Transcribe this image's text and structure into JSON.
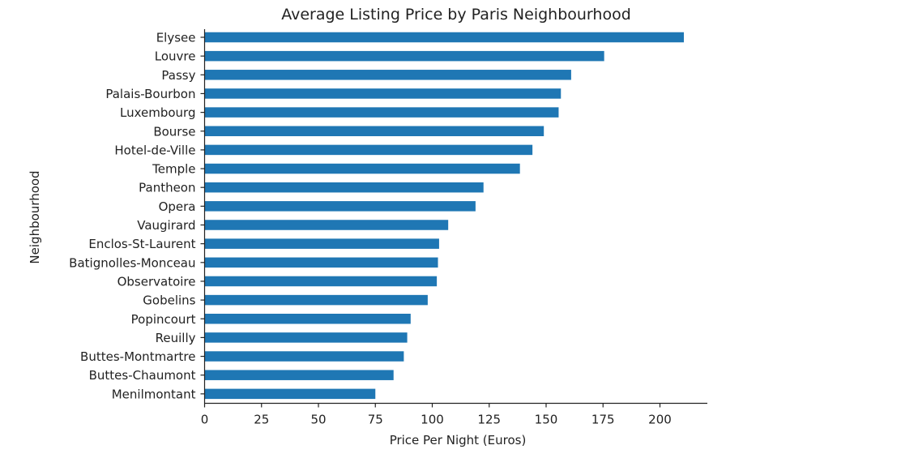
{
  "chart_data": {
    "type": "bar",
    "orientation": "horizontal",
    "title": "Average Listing Price by Paris Neighbourhood",
    "xlabel": "Price Per Night (Euros)",
    "ylabel": "Neighbourhood",
    "xlim": [
      0,
      220
    ],
    "xticks": [
      0,
      25,
      50,
      75,
      100,
      125,
      150,
      175,
      200
    ],
    "grid": false,
    "bar_color": "#1f77b4",
    "categories": [
      "Elysee",
      "Louvre",
      "Passy",
      "Palais-Bourbon",
      "Luxembourg",
      "Bourse",
      "Hotel-de-Ville",
      "Temple",
      "Pantheon",
      "Opera",
      "Vaugirard",
      "Enclos-St-Laurent",
      "Batignolles-Monceau",
      "Observatoire",
      "Gobelins",
      "Popincourt",
      "Reuilly",
      "Buttes-Montmartre",
      "Buttes-Chaumont",
      "Menilmontant"
    ],
    "values": [
      210.5,
      175.5,
      161,
      156.5,
      155.5,
      149,
      144,
      138.5,
      122.5,
      119,
      107,
      103,
      102.5,
      102,
      98,
      90.5,
      89,
      87.5,
      83,
      75
    ]
  }
}
